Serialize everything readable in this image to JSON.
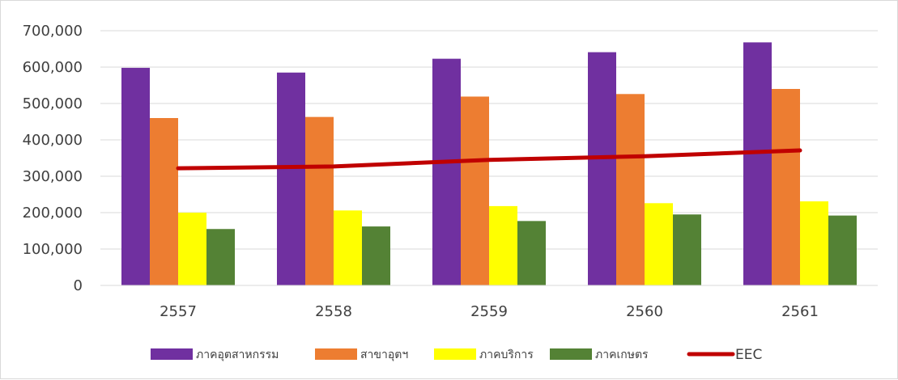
{
  "chart_data": {
    "type": "bar",
    "title": "",
    "xlabel": "",
    "ylabel": "",
    "categories": [
      "2557",
      "2558",
      "2559",
      "2560",
      "2561"
    ],
    "ylim": [
      0,
      700000
    ],
    "yticks": [
      0,
      100000,
      200000,
      300000,
      400000,
      500000,
      600000,
      700000
    ],
    "ytick_labels": [
      "0",
      "100,000",
      "200,000",
      "300,000",
      "400,000",
      "500,000",
      "600,000",
      "700,000"
    ],
    "grid": true,
    "legend_position": "bottom",
    "series": [
      {
        "name": "ภาคอุตสาหกรรม",
        "type": "bar",
        "color": "#7030a0",
        "values": [
          598000,
          585000,
          623000,
          641000,
          668000
        ]
      },
      {
        "name": "สาขาอุตฯ",
        "type": "bar",
        "color": "#ed7d31",
        "values": [
          460000,
          463000,
          519000,
          526000,
          540000
        ]
      },
      {
        "name": "ภาคบริการ",
        "type": "bar",
        "color": "#ffff00",
        "values": [
          200000,
          206000,
          218000,
          226000,
          231000
        ]
      },
      {
        "name": "ภาคเกษตร",
        "type": "bar",
        "color": "#548235",
        "values": [
          155000,
          162000,
          177000,
          195000,
          192000
        ]
      },
      {
        "name": "EEC",
        "type": "line",
        "color": "#c00000",
        "values": [
          322000,
          327000,
          345000,
          355000,
          371000
        ]
      }
    ]
  }
}
